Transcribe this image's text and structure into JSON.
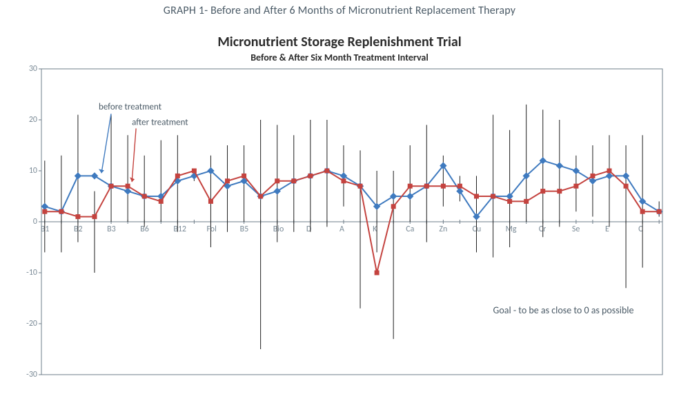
{
  "caption": "GRAPH 1- Before and After 6 Months of Micronutrient Replacement Therapy",
  "title": "Micronutrient Storage Replenishment Trial",
  "subtitle": "Before & After Six Month Treatment Interval",
  "chart": {
    "type": "line",
    "ylim": [
      -30,
      30
    ],
    "ytick_step": 10,
    "background_color": "#ffffff",
    "border_color": "#6e7d88",
    "tick_color": "#6e7d88",
    "axis_line_width": 1,
    "errorbar_color": "#1e1e1e",
    "errorbar_width": 1,
    "label_fontsize": 12,
    "label_color": "#7a8a96",
    "categories": [
      "B1",
      "",
      "B2",
      "",
      "B3",
      "",
      "B6",
      "",
      "B12",
      "",
      "Fol",
      "",
      "B5",
      "",
      "Bio",
      "",
      "D",
      "",
      "A",
      "",
      "K",
      "",
      "Ca",
      "",
      "Zn",
      "",
      "Cu",
      "",
      "Mg",
      "",
      "Cr",
      "",
      "Se",
      "",
      "E",
      "",
      "C",
      ""
    ],
    "points": [
      {
        "cat": "B1",
        "before": 3,
        "after": 2,
        "up": 12,
        "down": -6
      },
      {
        "cat": "",
        "before": 2,
        "after": 2,
        "up": 13,
        "down": -6
      },
      {
        "cat": "B2",
        "before": 9,
        "after": 1,
        "up": 21,
        "down": -4
      },
      {
        "cat": "",
        "before": 9,
        "after": 1,
        "up": 6,
        "down": -10
      },
      {
        "cat": "B3",
        "before": 7,
        "after": 7,
        "up": 21,
        "down": 0
      },
      {
        "cat": "",
        "before": 6,
        "after": 7,
        "up": 17,
        "down": 0
      },
      {
        "cat": "B6",
        "before": 5,
        "after": 5,
        "up": 13,
        "down": -1
      },
      {
        "cat": "",
        "before": 5,
        "after": 4,
        "up": 16,
        "down": 0
      },
      {
        "cat": "B12",
        "before": 8,
        "after": 9,
        "up": 17,
        "down": -2
      },
      {
        "cat": "",
        "before": 9,
        "after": 10,
        "up": 10,
        "down": 8
      },
      {
        "cat": "Fol",
        "before": 10,
        "after": 4,
        "up": 13,
        "down": -5
      },
      {
        "cat": "",
        "before": 7,
        "after": 8,
        "up": 15,
        "down": -2
      },
      {
        "cat": "B5",
        "before": 8,
        "after": 9,
        "up": 15,
        "down": 0
      },
      {
        "cat": "",
        "before": 5,
        "after": 5,
        "up": 20,
        "down": -25
      },
      {
        "cat": "Bio",
        "before": 6,
        "after": 8,
        "up": 19,
        "down": -4
      },
      {
        "cat": "",
        "before": 8,
        "after": 8,
        "up": 17,
        "down": -2
      },
      {
        "cat": "D",
        "before": 9,
        "after": 9,
        "up": 20,
        "down": -2
      },
      {
        "cat": "",
        "before": 10,
        "after": 10,
        "up": 20,
        "down": -1
      },
      {
        "cat": "A",
        "before": 9,
        "after": 8,
        "up": 15,
        "down": 3
      },
      {
        "cat": "",
        "before": 7,
        "after": 7,
        "up": 14,
        "down": -17
      },
      {
        "cat": "K",
        "before": 3,
        "after": -10,
        "up": 10,
        "down": -6
      },
      {
        "cat": "",
        "before": 5,
        "after": 3,
        "up": 10,
        "down": -23
      },
      {
        "cat": "Ca",
        "before": 5,
        "after": 7,
        "up": 15,
        "down": 0
      },
      {
        "cat": "",
        "before": 7,
        "after": 7,
        "up": 19,
        "down": -4
      },
      {
        "cat": "Zn",
        "before": 11,
        "after": 7,
        "up": 13,
        "down": 3
      },
      {
        "cat": "",
        "before": 6,
        "after": 7,
        "up": 9,
        "down": 4
      },
      {
        "cat": "Cu",
        "before": 1,
        "after": 5,
        "up": 9,
        "down": -6
      },
      {
        "cat": "",
        "before": 5,
        "after": 5,
        "up": 21,
        "down": -7
      },
      {
        "cat": "Mg",
        "before": 5,
        "after": 4,
        "up": 18,
        "down": -5
      },
      {
        "cat": "",
        "before": 9,
        "after": 4,
        "up": 23,
        "down": 0
      },
      {
        "cat": "Cr",
        "before": 12,
        "after": 6,
        "up": 22,
        "down": -3
      },
      {
        "cat": "",
        "before": 11,
        "after": 6,
        "up": 20,
        "down": -1
      },
      {
        "cat": "Se",
        "before": 10,
        "after": 7,
        "up": 13,
        "down": 2
      },
      {
        "cat": "",
        "before": 8,
        "after": 9,
        "up": 15,
        "down": 1
      },
      {
        "cat": "E",
        "before": 9,
        "after": 10,
        "up": 17,
        "down": -1
      },
      {
        "cat": "",
        "before": 9,
        "after": 7,
        "up": 15,
        "down": -13
      },
      {
        "cat": "C",
        "before": 4,
        "after": 2,
        "up": 17,
        "down": -9
      },
      {
        "cat": "",
        "before": 2,
        "after": 2,
        "up": 4,
        "down": 1
      }
    ],
    "series": [
      {
        "key": "before",
        "label": "before treatment",
        "color": "#3f7abf",
        "line_width": 2,
        "marker": "diamond",
        "marker_size": 7
      },
      {
        "key": "after",
        "label": "after treatment",
        "color": "#c4433f",
        "line_width": 2,
        "marker": "square",
        "marker_size": 6
      }
    ],
    "annotations": {
      "before_label": "before treatment",
      "after_label": "after treatment",
      "goal_text": "Goal - to be as close to 0 as possible"
    },
    "arrow_color": "#c4433f"
  }
}
